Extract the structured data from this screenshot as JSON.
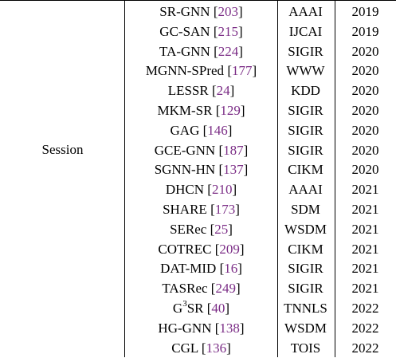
{
  "table": {
    "group_label": "Session",
    "rows": [
      {
        "method": "SR-GNN",
        "ref": "203",
        "venue": "AAAI",
        "year": "2019"
      },
      {
        "method": "GC-SAN",
        "ref": "215",
        "venue": "IJCAI",
        "year": "2019"
      },
      {
        "method": "TA-GNN",
        "ref": "224",
        "venue": "SIGIR",
        "year": "2020"
      },
      {
        "method": "MGNN-SPred",
        "ref": "177",
        "venue": "WWW",
        "year": "2020"
      },
      {
        "method": "LESSR",
        "ref": "24",
        "venue": "KDD",
        "year": "2020"
      },
      {
        "method": "MKM-SR",
        "ref": "129",
        "venue": "SIGIR",
        "year": "2020"
      },
      {
        "method": "GAG",
        "ref": "146",
        "venue": "SIGIR",
        "year": "2020"
      },
      {
        "method": "GCE-GNN",
        "ref": "187",
        "venue": "SIGIR",
        "year": "2020"
      },
      {
        "method": "SGNN-HN",
        "ref": "137",
        "venue": "CIKM",
        "year": "2020"
      },
      {
        "method": "DHCN",
        "ref": "210",
        "venue": "AAAI",
        "year": "2021"
      },
      {
        "method": "SHARE",
        "ref": "173",
        "venue": "SDM",
        "year": "2021"
      },
      {
        "method": "SERec",
        "ref": "25",
        "venue": "WSDM",
        "year": "2021"
      },
      {
        "method": "COTREC",
        "ref": "209",
        "venue": "CIKM",
        "year": "2021"
      },
      {
        "method": "DAT-MID",
        "ref": "16",
        "venue": "SIGIR",
        "year": "2021"
      },
      {
        "method": "TASRec",
        "ref": "249",
        "venue": "SIGIR",
        "year": "2021"
      },
      {
        "method": "G",
        "method_sup": "3",
        "method_suffix": "SR",
        "ref": "40",
        "venue": "TNNLS",
        "year": "2022"
      },
      {
        "method": "HG-GNN",
        "ref": "138",
        "venue": "WSDM",
        "year": "2022"
      },
      {
        "method": "CGL",
        "ref": "136",
        "venue": "TOIS",
        "year": "2022"
      }
    ]
  },
  "colors": {
    "reference": "#7b2d86",
    "rule": "#000000"
  }
}
